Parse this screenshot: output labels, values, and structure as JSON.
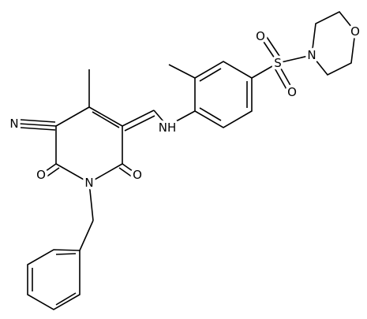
{
  "atoms": [
    "N",
    "O",
    "O",
    "N",
    "NH",
    "S",
    "O",
    "O",
    "N",
    "O"
  ]
}
